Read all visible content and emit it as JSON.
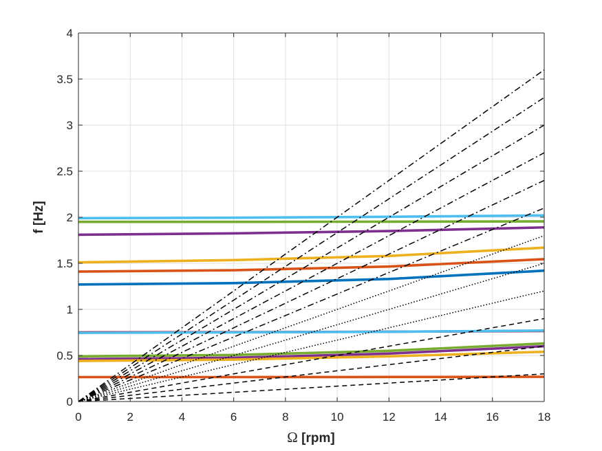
{
  "chart_data": {
    "type": "line",
    "xlabel_symbol": "Ω",
    "xlabel_unit": " [rpm]",
    "ylabel": "f [Hz]",
    "xlim": [
      0,
      18
    ],
    "ylim": [
      0,
      4
    ],
    "xticks": [
      0,
      2,
      4,
      6,
      8,
      10,
      12,
      14,
      16,
      18
    ],
    "yticks": [
      0,
      0.5,
      1,
      1.5,
      2,
      2.5,
      3,
      3.5,
      4
    ],
    "ytick_labels": [
      "0",
      "0.5",
      "1",
      "1.5",
      "2",
      "2.5",
      "3",
      "3.5",
      "4"
    ],
    "grid": true,
    "legend": "none",
    "series": [
      {
        "color": "#4DBEEE",
        "style": "solid",
        "x": [
          0,
          6,
          12,
          18
        ],
        "y": [
          1.99,
          1.995,
          2.005,
          2.02
        ]
      },
      {
        "color": "#77AC30",
        "style": "solid",
        "x": [
          0,
          6,
          12,
          18
        ],
        "y": [
          1.95,
          1.95,
          1.952,
          1.955
        ]
      },
      {
        "color": "#7E2F8E",
        "style": "solid",
        "x": [
          0,
          6,
          12,
          18
        ],
        "y": [
          1.81,
          1.825,
          1.85,
          1.89
        ]
      },
      {
        "color": "#EDB120",
        "style": "solid",
        "x": [
          0,
          6,
          12,
          18
        ],
        "y": [
          1.51,
          1.535,
          1.58,
          1.67
        ]
      },
      {
        "color": "#D95319",
        "style": "solid",
        "x": [
          0,
          6,
          12,
          18
        ],
        "y": [
          1.41,
          1.425,
          1.465,
          1.545
        ]
      },
      {
        "color": "#0072BD",
        "style": "solid",
        "x": [
          0,
          6,
          12,
          18
        ],
        "y": [
          1.27,
          1.285,
          1.33,
          1.42
        ]
      },
      {
        "color": "#A2142F",
        "style": "solid",
        "x": [
          0,
          6,
          12,
          18
        ],
        "y": [
          0.75,
          0.752,
          0.758,
          0.765
        ]
      },
      {
        "color": "#4DBEEE",
        "style": "solid",
        "x": [
          0,
          6,
          12,
          18
        ],
        "y": [
          0.745,
          0.75,
          0.757,
          0.77
        ]
      },
      {
        "color": "#77AC30",
        "style": "solid",
        "x": [
          0,
          6,
          12,
          18
        ],
        "y": [
          0.49,
          0.505,
          0.55,
          0.63
        ]
      },
      {
        "color": "#7E2F8E",
        "style": "solid",
        "x": [
          0,
          6,
          12,
          18
        ],
        "y": [
          0.46,
          0.475,
          0.52,
          0.6
        ]
      },
      {
        "color": "#EDB120",
        "style": "solid",
        "x": [
          0,
          6,
          12,
          18
        ],
        "y": [
          0.44,
          0.455,
          0.49,
          0.54
        ]
      },
      {
        "color": "#D95319",
        "style": "solid",
        "x": [
          0,
          6,
          12,
          18
        ],
        "y": [
          0.265,
          0.265,
          0.266,
          0.268
        ]
      },
      {
        "color": "#000000",
        "style": "dashdot",
        "x": [
          0,
          18
        ],
        "y": [
          0,
          3.6
        ]
      },
      {
        "color": "#000000",
        "style": "dashdot",
        "x": [
          0,
          18
        ],
        "y": [
          0,
          3.3
        ]
      },
      {
        "color": "#000000",
        "style": "dashdot",
        "x": [
          0,
          18
        ],
        "y": [
          0,
          3.0
        ]
      },
      {
        "color": "#000000",
        "style": "dashdot",
        "x": [
          0,
          18
        ],
        "y": [
          0,
          2.7
        ]
      },
      {
        "color": "#000000",
        "style": "dashdot",
        "x": [
          0,
          18
        ],
        "y": [
          0,
          2.4
        ]
      },
      {
        "color": "#000000",
        "style": "dashdot",
        "x": [
          0,
          18
        ],
        "y": [
          0,
          2.1
        ]
      },
      {
        "color": "#000000",
        "style": "dotted",
        "x": [
          0,
          18
        ],
        "y": [
          0,
          1.8
        ]
      },
      {
        "color": "#000000",
        "style": "dotted",
        "x": [
          0,
          18
        ],
        "y": [
          0,
          1.5
        ]
      },
      {
        "color": "#000000",
        "style": "dotted",
        "x": [
          0,
          18
        ],
        "y": [
          0,
          1.2
        ]
      },
      {
        "color": "#000000",
        "style": "dashed",
        "x": [
          0,
          18
        ],
        "y": [
          0,
          0.9
        ]
      },
      {
        "color": "#000000",
        "style": "dashed",
        "x": [
          0,
          18
        ],
        "y": [
          0,
          0.6
        ]
      },
      {
        "color": "#000000",
        "style": "dashed",
        "x": [
          0,
          18
        ],
        "y": [
          0,
          0.3
        ]
      }
    ]
  }
}
